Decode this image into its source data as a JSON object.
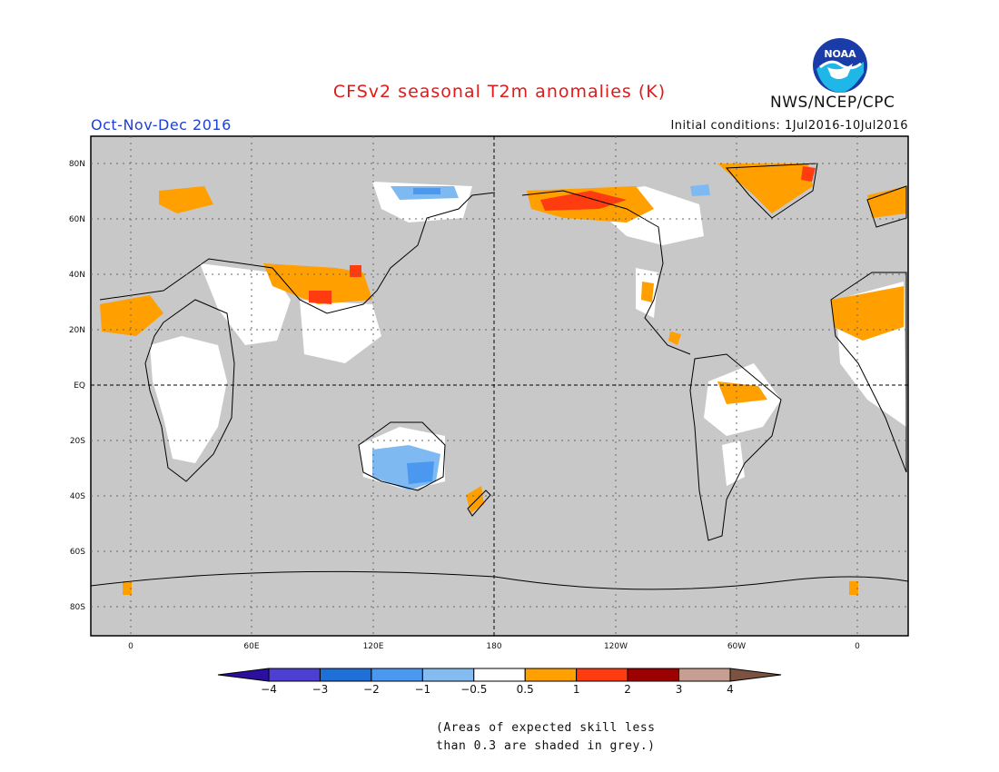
{
  "header": {
    "title": "CFSv2 seasonal T2m anomalies (K)",
    "season": "Oct-Nov-Dec 2016",
    "initial_conditions": "Initial conditions: 1Jul2016-10Jul2016",
    "organization": "NWS/NCEP/CPC",
    "logo_text": "NOAA"
  },
  "map": {
    "lat_labels": [
      "80N",
      "60N",
      "40N",
      "20N",
      "EQ",
      "20S",
      "40S",
      "60S",
      "80S"
    ],
    "lon_labels": [
      "0",
      "60E",
      "120E",
      "180",
      "120W",
      "60W",
      "0"
    ],
    "colors": {
      "land_background": "#c8c8c8",
      "skill_region": "#ffffff",
      "warm_05_1": "#ff9f00",
      "warm_1_2": "#ff3b10",
      "cool_05_1": "#7fb9f2",
      "cool_1_2": "#4a98ef",
      "coastline": "#000000"
    }
  },
  "colorbar": {
    "labels": [
      "−4",
      "−3",
      "−2",
      "−1",
      "−0.5",
      "0.5",
      "1",
      "2",
      "3",
      "4"
    ],
    "colors": [
      "#2b0f9e",
      "#4c3fd1",
      "#1f6fd8",
      "#4a98ef",
      "#84bcf2",
      "#ffffff",
      "#ff9f00",
      "#ff3b10",
      "#9c0000",
      "#c5a092",
      "#7b5340"
    ]
  },
  "footnote": {
    "line1": "(Areas of expected skill less",
    "line2": "than 0.3 are shaded in grey.)"
  }
}
